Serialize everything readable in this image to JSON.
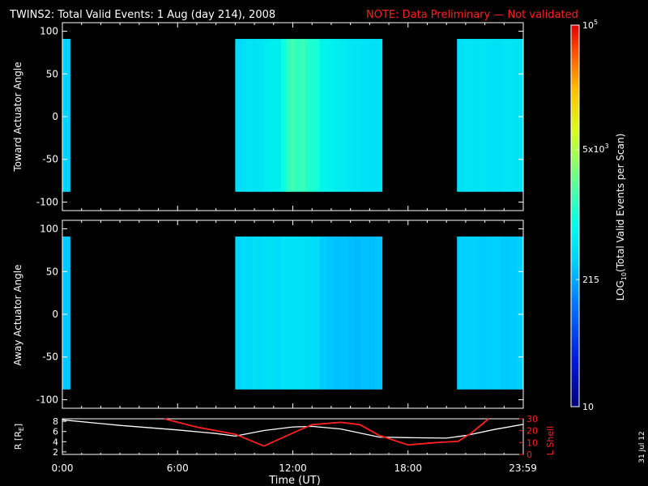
{
  "header": {
    "title": "TWINS2: Total Valid Events:  1 Aug (day 214), 2008",
    "note": "NOTE: Data Preliminary — Not validated"
  },
  "stamp": "31 Jul 12",
  "colors": {
    "background": "#000000",
    "axes": "#ffffff",
    "note": "#ff2020",
    "r_trace": "#ffffff",
    "lshell_trace": "#ff2020"
  },
  "colorbar": {
    "label": "LOG10(Total Valid Events per Scan)",
    "label_main": "LOG",
    "label_sub": "10",
    "label_rest": "(Total Valid Events per Scan)",
    "ticks": [
      {
        "value": 10,
        "text": "10",
        "sup": ""
      },
      {
        "value": 215,
        "text": "215",
        "sup": ""
      },
      {
        "value": 5000,
        "text": "5x10",
        "sup": "3"
      },
      {
        "value": 100000,
        "text": "10",
        "sup": "5"
      }
    ],
    "range": [
      10,
      100000
    ],
    "scale": "log"
  },
  "xaxis": {
    "label": "Time (UT)",
    "range": [
      0,
      24
    ],
    "ticks": [
      {
        "value": 0,
        "text": "0:00"
      },
      {
        "value": 6,
        "text": "6:00"
      },
      {
        "value": 12,
        "text": "12:00"
      },
      {
        "value": 18,
        "text": "18:00"
      },
      {
        "value": 23.983,
        "text": "23:59"
      }
    ]
  },
  "panels": [
    {
      "ylabel": "Toward Actuator Angle"
    },
    {
      "ylabel": "Away Actuator Angle"
    }
  ],
  "orbit_panel": {
    "left_label": "R [R",
    "left_label_sub": "E",
    "left_label_end": "]",
    "right_label": "L Shell",
    "left_ticks": [
      "2",
      "4",
      "6",
      "8"
    ],
    "right_ticks": [
      "0",
      "10",
      "20",
      "30"
    ]
  },
  "chart_data": [
    {
      "type": "heatmap",
      "title": "TWINS2: Total Valid Events:  1 Aug (day 214), 2008",
      "ylabel": "Toward Actuator Angle",
      "xlabel": "",
      "xlim": [
        0,
        24
      ],
      "ylim": [
        -110,
        110
      ],
      "yticks": [
        -100,
        -50,
        0,
        50,
        100
      ],
      "grid": false,
      "colorscale": "log",
      "zlim": [
        10,
        100000
      ],
      "angle_range": [
        -88,
        91
      ],
      "data_blocks": [
        {
          "start": 0.0,
          "end": 0.4,
          "events": [
            350,
            380,
            320,
            400,
            360
          ]
        },
        {
          "start": 9.0,
          "end": 11.4,
          "events": [
            420,
            460,
            500,
            480,
            520,
            560,
            600,
            580
          ]
        },
        {
          "start": 11.4,
          "end": 13.4,
          "events": [
            900,
            1400,
            1600,
            1300,
            1500,
            1200,
            1100,
            1000
          ]
        },
        {
          "start": 13.4,
          "end": 16.65,
          "events": [
            700,
            650,
            600,
            560,
            520,
            500,
            480,
            460,
            450
          ]
        },
        {
          "start": 20.55,
          "end": 24.0,
          "events": [
            450,
            500,
            480,
            520,
            470,
            460,
            500,
            490,
            480
          ]
        }
      ]
    },
    {
      "type": "heatmap",
      "ylabel": "Away Actuator Angle",
      "xlabel": "",
      "xlim": [
        0,
        24
      ],
      "ylim": [
        -110,
        110
      ],
      "yticks": [
        -100,
        -50,
        0,
        50,
        100
      ],
      "grid": false,
      "colorscale": "log",
      "zlim": [
        10,
        100000
      ],
      "angle_range": [
        -88,
        91
      ],
      "data_blocks": [
        {
          "start": 0.0,
          "end": 0.4,
          "events": [
            300,
            320,
            290,
            330,
            310
          ]
        },
        {
          "start": 9.0,
          "end": 11.4,
          "events": [
            380,
            420,
            400,
            450,
            430,
            460,
            440,
            420
          ]
        },
        {
          "start": 11.4,
          "end": 13.4,
          "events": [
            500,
            480,
            460,
            470,
            450,
            440,
            430,
            420
          ]
        },
        {
          "start": 13.4,
          "end": 16.65,
          "events": [
            320,
            300,
            280,
            290,
            270,
            260,
            280,
            270,
            290
          ]
        },
        {
          "start": 20.55,
          "end": 24.0,
          "events": [
            330,
            350,
            340,
            320,
            330,
            340,
            310,
            320,
            330
          ]
        }
      ]
    },
    {
      "type": "line",
      "xlabel": "Time (UT)",
      "xlim": [
        0,
        24
      ],
      "series": [
        {
          "name": "R [RE]",
          "axis": "left",
          "ylim": [
            1.5,
            8.5
          ],
          "x": [
            0,
            3,
            6,
            8,
            9,
            10.5,
            12,
            13,
            14.5,
            16,
            16.5,
            18,
            20,
            21,
            22.5,
            24
          ],
          "values": [
            8.3,
            7.2,
            6.3,
            5.6,
            5.1,
            6.2,
            6.9,
            7.0,
            6.5,
            5.3,
            4.9,
            4.8,
            4.7,
            5.2,
            6.4,
            7.4
          ]
        },
        {
          "name": "L Shell",
          "axis": "right",
          "ylim": [
            0,
            30
          ],
          "x": [
            5.3,
            7,
            9,
            10.5,
            12,
            13,
            14.5,
            15.5,
            16.5,
            18,
            19.5,
            20.6,
            21.3,
            22.2
          ],
          "values": [
            30,
            23,
            17,
            7,
            18,
            25,
            27,
            25,
            16,
            8,
            10,
            11,
            18,
            30
          ]
        }
      ]
    }
  ]
}
